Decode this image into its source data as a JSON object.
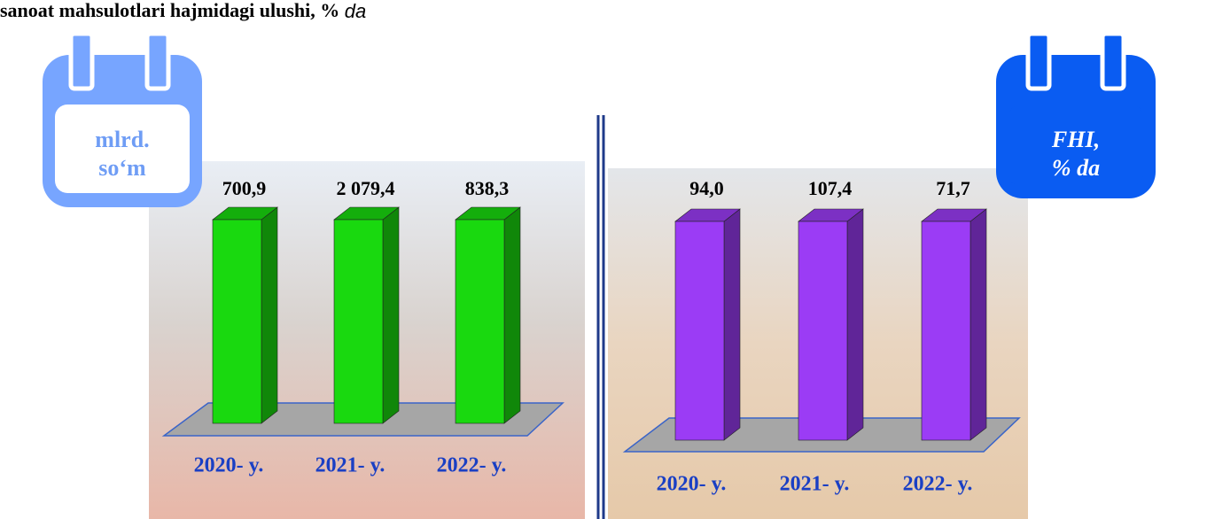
{
  "header": {
    "title": "sanoat mahsulotlari hajmidagi ulushi, %",
    "title_unit": "da"
  },
  "chart_data": [
    {
      "type": "bar",
      "unit_label": [
        "mlrd.",
        "so‘m"
      ],
      "categories": [
        "2020- y.",
        "2021- y.",
        "2022- y."
      ],
      "values": [
        700.9,
        2079.4,
        838.3
      ],
      "value_labels": [
        "700,9",
        "2 079,4",
        "838,3"
      ],
      "color": "#19d90f"
    },
    {
      "type": "bar",
      "unit_label": [
        "FHI,",
        "% da"
      ],
      "categories": [
        "2020- y.",
        "2021- y.",
        "2022- y."
      ],
      "values": [
        94.0,
        107.4,
        71.7
      ],
      "value_labels": [
        "94,0",
        "107,4",
        "71,7"
      ],
      "color": "#9b3cf5"
    }
  ]
}
